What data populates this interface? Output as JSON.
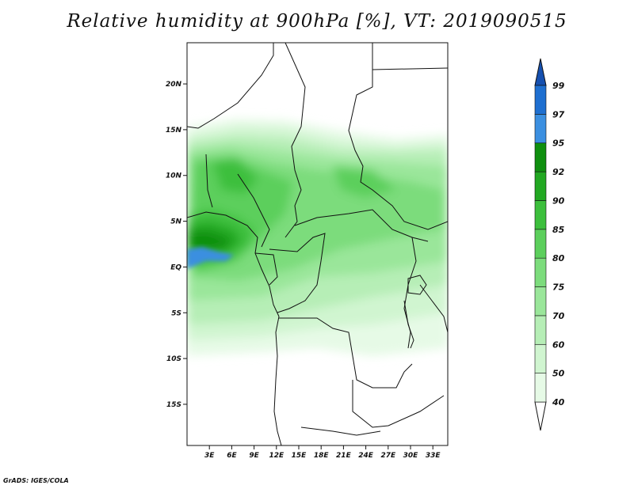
{
  "title": "Relative humidity at 900hPa [%], VT: 2019090515",
  "credit": "GrADS: IGES/COLA",
  "map": {
    "lat_range": [
      -19.5,
      24.5
    ],
    "lon_range": [
      0,
      35
    ],
    "lat_labels": [
      "20N",
      "15N",
      "10N",
      "5N",
      "EQ",
      "5S",
      "10S",
      "15S"
    ],
    "lon_labels": [
      "3E",
      "6E",
      "9E",
      "12E",
      "15E",
      "18E",
      "21E",
      "24E",
      "27E",
      "30E",
      "33E"
    ],
    "field_name": "relative humidity"
  },
  "colorbar": {
    "labels": [
      "40",
      "50",
      "60",
      "70",
      "75",
      "80",
      "85",
      "90",
      "92",
      "95",
      "97",
      "99"
    ],
    "colors": [
      "#ffffff",
      "#e6fae6",
      "#d0f5d0",
      "#b6eeb6",
      "#9ae69a",
      "#7cdc7c",
      "#5ccf5c",
      "#3cbf3c",
      "#22a822",
      "#0f8f0f",
      "#3b8fe0",
      "#1e6fd0",
      "#1550b0"
    ]
  }
}
